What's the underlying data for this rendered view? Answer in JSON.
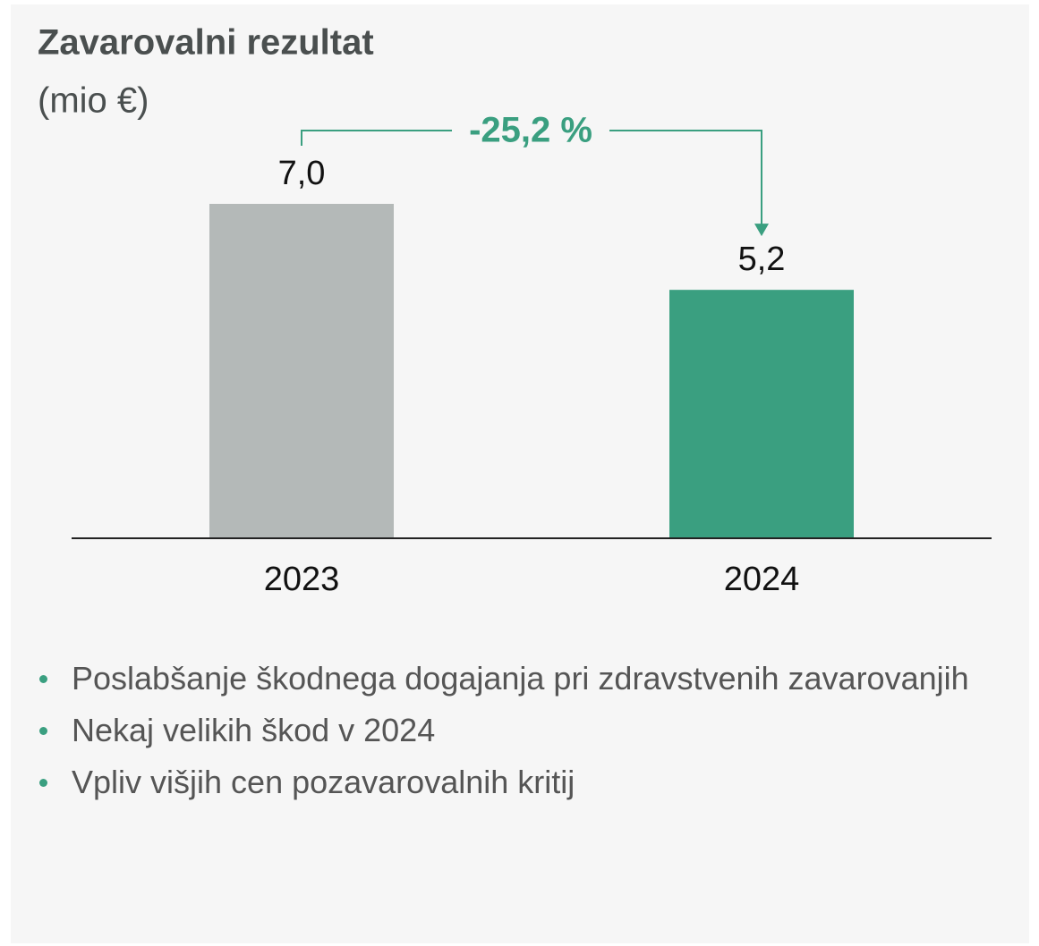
{
  "chart_data": {
    "type": "bar",
    "title": "Zavarovalni rezultat",
    "subtitle": "(mio €)",
    "categories": [
      "2023",
      "2024"
    ],
    "values": [
      7.0,
      5.2
    ],
    "value_labels": [
      "7,0",
      "5,2"
    ],
    "colors": [
      "#b4b9b8",
      "#3a9f80"
    ],
    "annotation": "-25,2 %",
    "annotation_color": "#3a9f80"
  },
  "bullets": [
    "Poslabšanje škodnega dogajanja pri zdravstvenih zavarovanjih",
    "Nekaj velikih škod v 2024",
    "Vpliv višjih cen pozavarovalnih kritij"
  ]
}
